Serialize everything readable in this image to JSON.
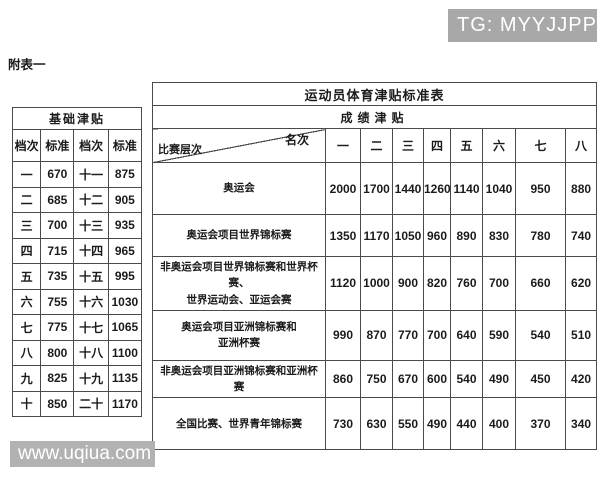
{
  "badges": {
    "tg": "TG: MYYJJPP",
    "watermark": "www.uqiua.com"
  },
  "colors": {
    "tg_badge_bg": "#a8a8a8",
    "watermark_bg": "#b2b2b2",
    "table_border": "#4a4a4a"
  },
  "caption": "附表一",
  "left_table": {
    "title": "基础津贴",
    "headers": [
      "档次",
      "标准",
      "档次",
      "标准"
    ],
    "rows": [
      [
        "一",
        "670",
        "十一",
        "875"
      ],
      [
        "二",
        "685",
        "十二",
        "905"
      ],
      [
        "三",
        "700",
        "十三",
        "935"
      ],
      [
        "四",
        "715",
        "十四",
        "965"
      ],
      [
        "五",
        "735",
        "十五",
        "995"
      ],
      [
        "六",
        "755",
        "十六",
        "1030"
      ],
      [
        "七",
        "775",
        "十七",
        "1065"
      ],
      [
        "八",
        "800",
        "十八",
        "1100"
      ],
      [
        "九",
        "825",
        "十九",
        "1135"
      ],
      [
        "十",
        "850",
        "二十",
        "1170"
      ]
    ]
  },
  "right_table": {
    "title": "运动员体育津贴标准表",
    "subtitle": "成绩津贴",
    "corner": {
      "top": "名次",
      "bottom": "比赛层次"
    },
    "rank_headers": [
      "一",
      "二",
      "三",
      "四",
      "五",
      "六",
      "七",
      "八"
    ],
    "rows": [
      {
        "label": "奥运会",
        "values": [
          "2000",
          "1700",
          "1440",
          "1260",
          "1140",
          "1040",
          "950",
          "880"
        ]
      },
      {
        "label": "奥运会项目世界锦标赛",
        "values": [
          "1350",
          "1170",
          "1050",
          "960",
          "890",
          "830",
          "780",
          "740"
        ]
      },
      {
        "label": "非奥运会项目世界锦标赛和世界杯赛、\n世界运动会、亚运会赛",
        "values": [
          "1120",
          "1000",
          "900",
          "820",
          "760",
          "700",
          "660",
          "620"
        ]
      },
      {
        "label": "奥运会项目亚洲锦标赛和\n亚洲杯赛",
        "values": [
          "990",
          "870",
          "770",
          "700",
          "640",
          "590",
          "540",
          "510"
        ]
      },
      {
        "label": "非奥运会项目亚洲锦标赛和亚洲杯赛",
        "values": [
          "860",
          "750",
          "670",
          "600",
          "540",
          "490",
          "450",
          "420"
        ]
      },
      {
        "label": "全国比赛、世界青年锦标赛",
        "values": [
          "730",
          "630",
          "550",
          "490",
          "440",
          "400",
          "370",
          "340"
        ]
      }
    ]
  }
}
